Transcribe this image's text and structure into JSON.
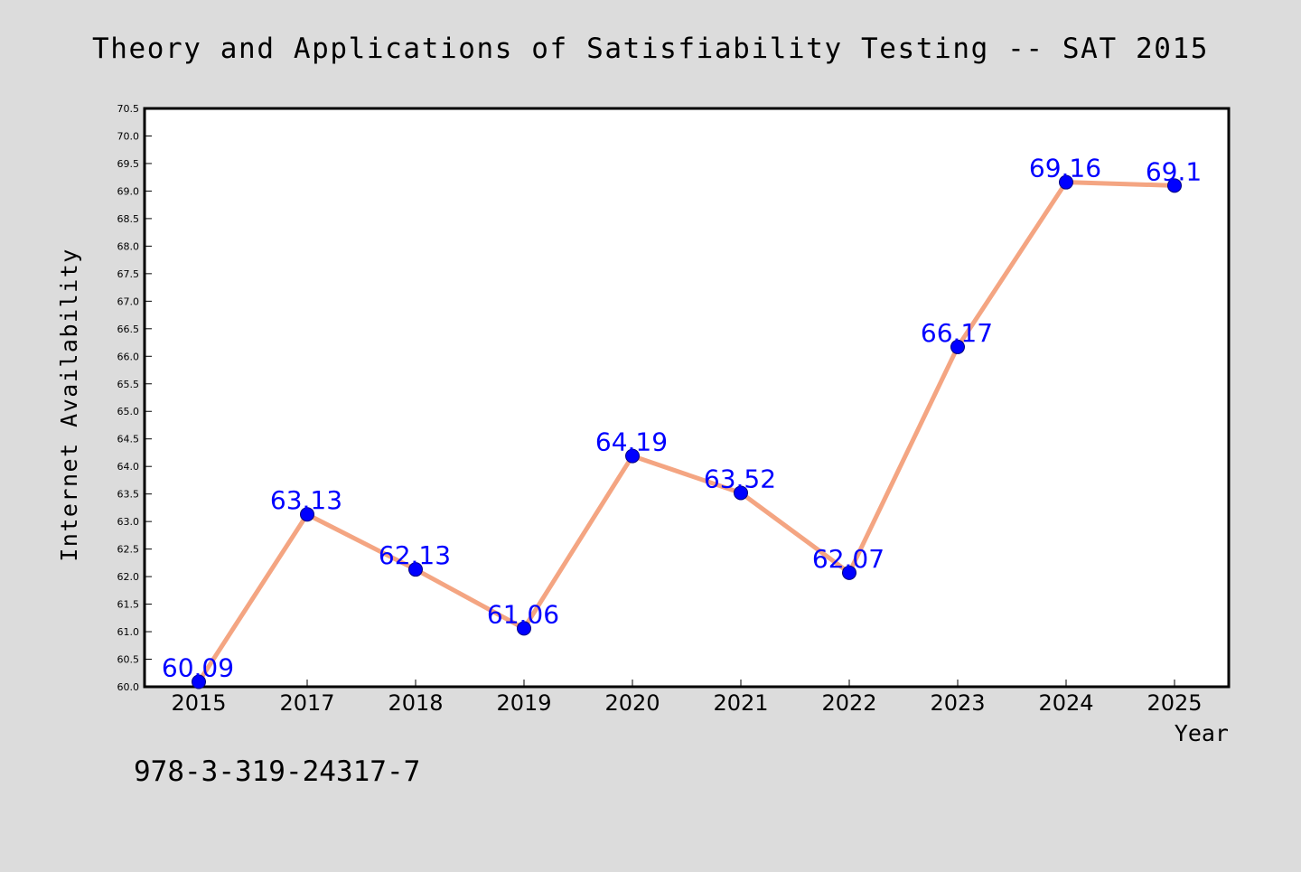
{
  "chart_data": {
    "type": "line",
    "title": "Theory and Applications of Satisfiability Testing -- SAT 2015",
    "xlabel": "Year",
    "ylabel": "Internet Availability",
    "categories": [
      "2015",
      "2017",
      "2018",
      "2019",
      "2020",
      "2021",
      "2022",
      "2023",
      "2024",
      "2025"
    ],
    "series": [
      {
        "values": [
          60.09,
          63.13,
          62.13,
          61.06,
          64.19,
          63.52,
          62.07,
          66.17,
          69.16,
          69.1
        ],
        "labels": [
          "60.09",
          "63.13",
          "62.13",
          "61.06",
          "64.19",
          "63.52",
          "62.07",
          "66.17",
          "69.16",
          "69.1"
        ]
      }
    ],
    "ylim": [
      60.0,
      70.5
    ],
    "ytick_step": 0.5,
    "grid": false,
    "legend": "none",
    "annotation": "978-3-319-24317-7",
    "colors": {
      "background": "#dcdcdc",
      "plot_background": "#ffffff",
      "line": "#f4a582",
      "marker": "#0000ff",
      "data_label": "#0000ff",
      "text": "#000000"
    }
  }
}
